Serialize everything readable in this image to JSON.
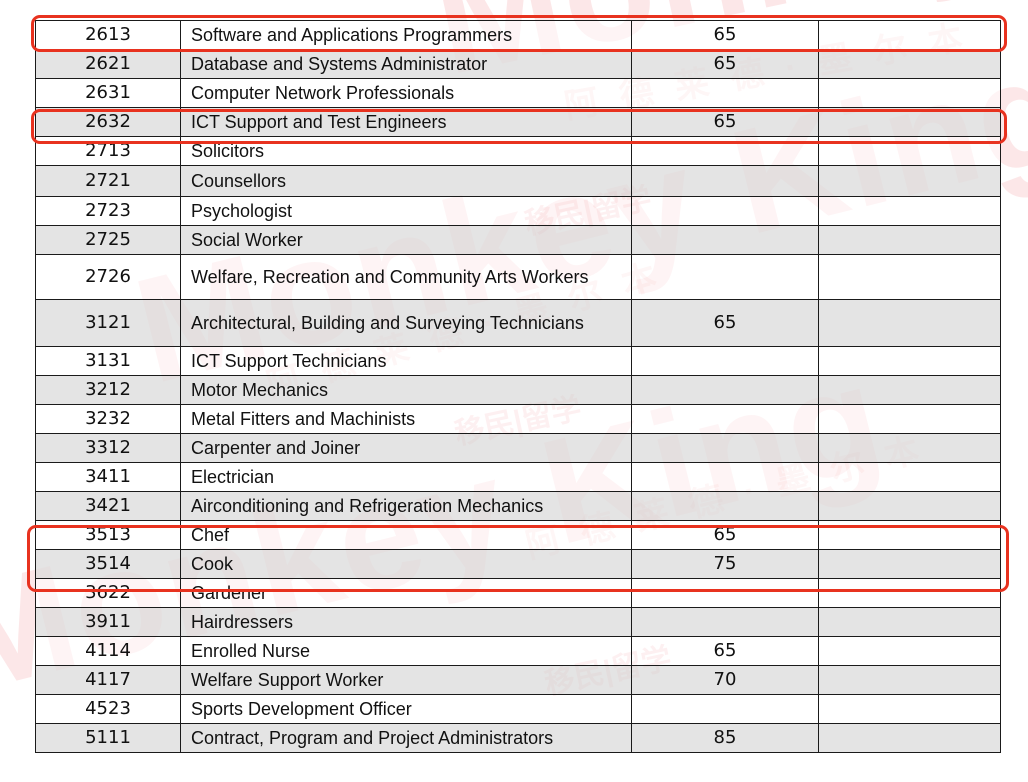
{
  "table": {
    "rows": [
      {
        "code": "2613",
        "occupation": "Software and Applications Programmers",
        "score": "65",
        "extra": ""
      },
      {
        "code": "2621",
        "occupation": "Database and Systems Administrator",
        "score": "65",
        "extra": ""
      },
      {
        "code": "2631",
        "occupation": "Computer Network Professionals",
        "score": "",
        "extra": ""
      },
      {
        "code": "2632",
        "occupation": "ICT Support and Test Engineers",
        "score": "65",
        "extra": ""
      },
      {
        "code": "2713",
        "occupation": "Solicitors",
        "score": "",
        "extra": ""
      },
      {
        "code": "2721",
        "occupation": "Counsellors",
        "score": "",
        "extra": ""
      },
      {
        "code": "2723",
        "occupation": "Psychologist",
        "score": "",
        "extra": ""
      },
      {
        "code": "2725",
        "occupation": "Social Worker",
        "score": "",
        "extra": ""
      },
      {
        "code": "2726",
        "occupation": "Welfare, Recreation and Community Arts Workers",
        "score": "",
        "extra": ""
      },
      {
        "code": "3121",
        "occupation": "Architectural, Building and Surveying Technicians",
        "score": "65",
        "extra": ""
      },
      {
        "code": "3131",
        "occupation": "ICT Support Technicians",
        "score": "",
        "extra": ""
      },
      {
        "code": "3212",
        "occupation": "Motor Mechanics",
        "score": "",
        "extra": ""
      },
      {
        "code": "3232",
        "occupation": "Metal Fitters and Machinists",
        "score": "",
        "extra": ""
      },
      {
        "code": "3312",
        "occupation": "Carpenter and Joiner",
        "score": "",
        "extra": ""
      },
      {
        "code": "3411",
        "occupation": "Electrician",
        "score": "",
        "extra": ""
      },
      {
        "code": "3421",
        "occupation": "Airconditioning and Refrigeration Mechanics",
        "score": "",
        "extra": ""
      },
      {
        "code": "3513",
        "occupation": "Chef",
        "score": "65",
        "extra": ""
      },
      {
        "code": "3514",
        "occupation": "Cook",
        "score": "75",
        "extra": ""
      },
      {
        "code": "3622",
        "occupation": "Gardener",
        "score": "",
        "extra": ""
      },
      {
        "code": "3911",
        "occupation": "Hairdressers",
        "score": "",
        "extra": ""
      },
      {
        "code": "4114",
        "occupation": "Enrolled Nurse",
        "score": "65",
        "extra": ""
      },
      {
        "code": "4117",
        "occupation": "Welfare Support Worker",
        "score": "70",
        "extra": ""
      },
      {
        "code": "4523",
        "occupation": "Sports Development Officer",
        "score": "",
        "extra": ""
      },
      {
        "code": "5111",
        "occupation": "Contract, Program and Project Administrators",
        "score": "85",
        "extra": ""
      }
    ]
  },
  "highlight_color": "#e8321f",
  "watermark": {
    "brand": "Monkey King",
    "chinese_line": "阿德莱德·墨尔本",
    "tag": "移民|留学",
    "color": "#e8202a"
  }
}
